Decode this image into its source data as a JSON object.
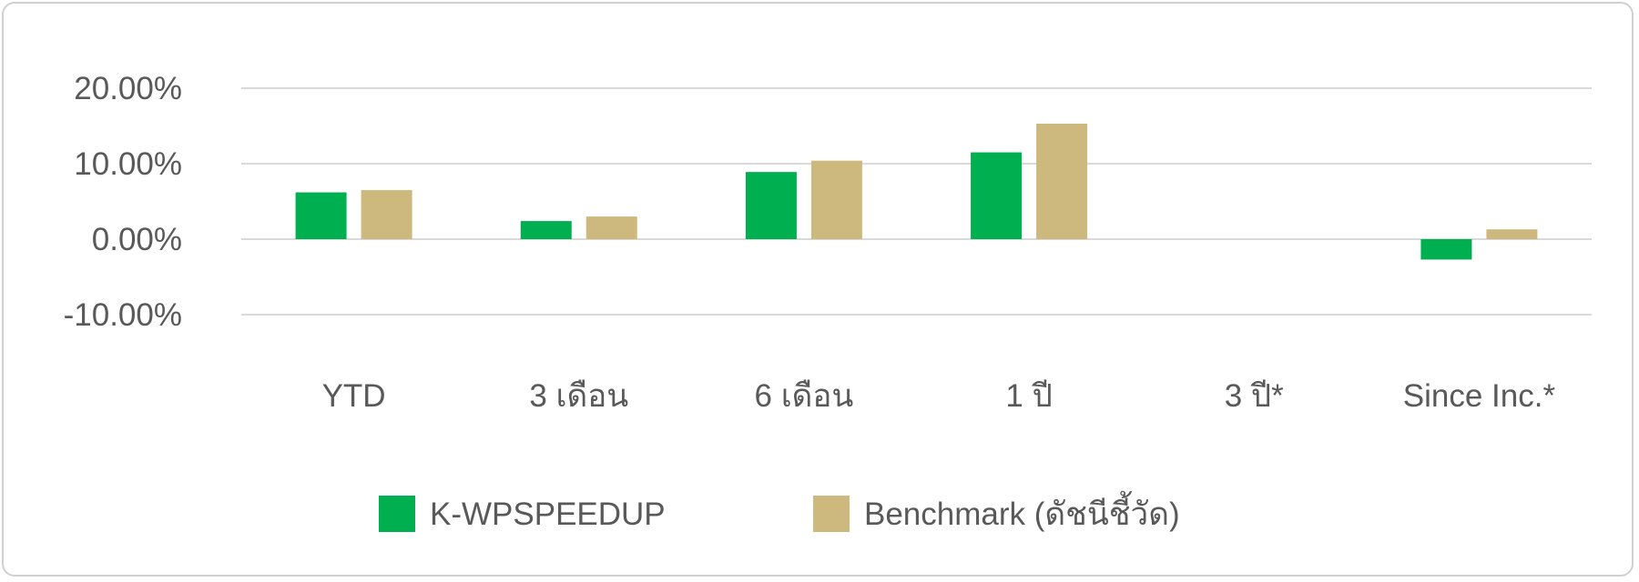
{
  "chart_data": {
    "type": "bar",
    "categories": [
      "YTD",
      "3 เดือน",
      "6 เดือน",
      "1 ปี",
      "3 ปี*",
      "Since Inc.*"
    ],
    "series": [
      {
        "name": "K-WPSPEEDUP",
        "color": "#00b050",
        "values": [
          6.2,
          2.4,
          8.9,
          11.5,
          null,
          -2.7
        ]
      },
      {
        "name": "Benchmark (ดัชนีชี้วัด)",
        "color": "#cdb97e",
        "values": [
          6.5,
          3.0,
          10.4,
          15.3,
          null,
          1.3
        ]
      }
    ],
    "y_ticks": [
      "20.00%",
      "10.00%",
      "0.00%",
      "-10.00%"
    ],
    "ylim": [
      -10,
      20
    ],
    "grid": true,
    "legend_position": "bottom-center",
    "gridline_color": "#d9d9d9"
  }
}
